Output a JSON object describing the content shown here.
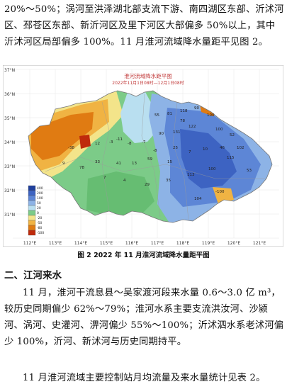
{
  "paragraph1": "20%～50%；涡河至洪泽湖北部支流下游、南四湖区东部、沂沭河区、邳苍区东部、新沂河区及里下河区大部偏多 50%以上，其中沂沭河区局部偏多 100%。11 月淮河流域降水量距平见图 2。",
  "map": {
    "title": "淮河流域降水距平图",
    "subtitle": "2022年11月1日08时—12月1日08时",
    "lat_labels": [
      "37°N",
      "36°N",
      "35°N",
      "34°N",
      "33°N",
      "32°N",
      "31°N"
    ],
    "lon_labels": [
      "112°E",
      "113°E",
      "114°E",
      "115°E",
      "116°E",
      "117°E",
      "118°E",
      "119°E",
      "120°E",
      "121°E"
    ],
    "legend_labels": [
      "400",
      "200",
      "100",
      "50",
      "20",
      "0",
      "-20",
      "-50",
      "-80",
      "-100"
    ],
    "legend_colors": [
      "#1f3f9c",
      "#3d63c2",
      "#5d86d6",
      "#8db3e6",
      "#b9dff0",
      "#7ccb88",
      "#f3e48a",
      "#f0b343",
      "#e07b12",
      "#bf2a0c"
    ],
    "station_values": [
      "90",
      "118",
      "81",
      "55",
      "100",
      "78",
      "122",
      "100",
      "131",
      "90",
      "52",
      "-11",
      "-3",
      "-8",
      "-7",
      "-38",
      "12",
      "-8",
      "25",
      "7",
      "10",
      "46",
      "102",
      "115",
      "15",
      "59",
      "13",
      "41",
      "33",
      "78",
      "9",
      "7",
      "4",
      "29",
      "35",
      "113",
      "-100",
      "100",
      "53",
      "104"
    ]
  },
  "figure_caption": "图 2   2022 年 11 月淮河流域降水量距平图",
  "section_heading": "二、江河来水",
  "paragraph2": "11 月，淮河干流息县～吴家渡河段来水量 0.6～3.0 亿 m³，较历史同期偏少 62%～79%；淮河水系主要支流洪汝河、沙颍河、涡河、史灌河、淠河偏少 55%～100%；沂沭泗水系老沭河偏少 100%，沂河、新沭河与历史同期持平。",
  "paragraph3": "11 月淮河流域主要控制站月均流量及来水量统计见表 2。"
}
